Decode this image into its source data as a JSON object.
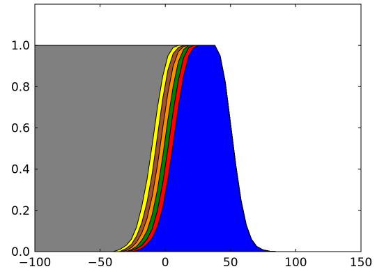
{
  "chart_data": {
    "type": "area",
    "title": "",
    "xlabel": "",
    "ylabel": "",
    "xlim": [
      -100,
      150
    ],
    "ylim": [
      0,
      1.2
    ],
    "grid": false,
    "legend": "none",
    "x_ticks": [
      -100,
      -50,
      0,
      50,
      100,
      150
    ],
    "x_tick_labels": [
      "−100",
      "−50",
      "0",
      "50",
      "100",
      "150"
    ],
    "y_ticks": [
      0.0,
      0.2,
      0.4,
      0.6,
      0.8,
      1.0
    ],
    "y_tick_labels": [
      "0.0",
      "0.2",
      "0.4",
      "0.6",
      "0.8",
      "1.0"
    ],
    "series": [
      {
        "color": "#808080",
        "x": [
          -100,
          -40,
          -35,
          -30,
          -26,
          -22,
          -18,
          -14,
          -10,
          -6,
          -2,
          2,
          6,
          10,
          14,
          18,
          22,
          26,
          30,
          34,
          38,
          42,
          46,
          50,
          54,
          58,
          62,
          66,
          70,
          75,
          80,
          85,
          90,
          100,
          150
        ],
        "values": [
          1.0,
          1.0,
          1.0,
          1.0,
          1.0,
          1.0,
          1.0,
          1.0,
          1.0,
          1.0,
          1.0,
          1.0,
          1.0,
          1.0,
          1.0,
          1.0,
          1.0,
          1.0,
          1.0,
          1.0,
          1.0,
          0.95,
          0.82,
          0.62,
          0.42,
          0.25,
          0.13,
          0.06,
          0.025,
          0.008,
          0.002,
          0.0,
          0.0,
          0.0,
          0.0
        ]
      },
      {
        "color": "#ffff00",
        "x": [
          -100,
          -40,
          -35,
          -30,
          -26,
          -22,
          -18,
          -14,
          -10,
          -6,
          -2,
          2,
          6,
          10,
          14,
          18,
          22,
          26,
          30,
          34,
          38,
          42,
          46,
          50,
          54,
          58,
          62,
          66,
          70,
          75,
          80,
          85,
          90,
          100,
          150
        ],
        "values": [
          0.0,
          0.0,
          0.01,
          0.03,
          0.06,
          0.12,
          0.22,
          0.35,
          0.52,
          0.7,
          0.85,
          0.95,
          0.99,
          1.0,
          1.0,
          1.0,
          1.0,
          1.0,
          1.0,
          1.0,
          1.0,
          0.95,
          0.82,
          0.62,
          0.42,
          0.25,
          0.13,
          0.06,
          0.025,
          0.008,
          0.002,
          0.0,
          0.0,
          0.0,
          0.0
        ]
      },
      {
        "color": "#a0522d",
        "x": [
          -100,
          -40,
          -35,
          -30,
          -26,
          -22,
          -18,
          -14,
          -10,
          -6,
          -2,
          2,
          6,
          10,
          14,
          18,
          22,
          26,
          30,
          34,
          38,
          42,
          46,
          50,
          54,
          58,
          62,
          66,
          70,
          75,
          80,
          85,
          90,
          100,
          150
        ],
        "values": [
          0.0,
          0.0,
          0.0,
          0.015,
          0.035,
          0.075,
          0.14,
          0.24,
          0.38,
          0.56,
          0.74,
          0.88,
          0.96,
          0.99,
          1.0,
          1.0,
          1.0,
          1.0,
          1.0,
          1.0,
          1.0,
          0.95,
          0.82,
          0.62,
          0.42,
          0.25,
          0.13,
          0.06,
          0.025,
          0.008,
          0.002,
          0.0,
          0.0,
          0.0,
          0.0
        ]
      },
      {
        "color": "#ff8c00",
        "x": [
          -100,
          -40,
          -35,
          -30,
          -26,
          -22,
          -18,
          -14,
          -10,
          -6,
          -2,
          2,
          6,
          10,
          14,
          18,
          22,
          26,
          30,
          34,
          38,
          42,
          46,
          50,
          54,
          58,
          62,
          66,
          70,
          75,
          80,
          85,
          90,
          100,
          150
        ],
        "values": [
          0.0,
          0.0,
          0.0,
          0.005,
          0.02,
          0.045,
          0.09,
          0.16,
          0.27,
          0.42,
          0.6,
          0.77,
          0.9,
          0.97,
          0.995,
          1.0,
          1.0,
          1.0,
          1.0,
          1.0,
          1.0,
          0.95,
          0.82,
          0.62,
          0.42,
          0.25,
          0.13,
          0.06,
          0.025,
          0.008,
          0.002,
          0.0,
          0.0,
          0.0,
          0.0
        ]
      },
      {
        "color": "#008000",
        "x": [
          -100,
          -40,
          -35,
          -30,
          -26,
          -22,
          -18,
          -14,
          -10,
          -6,
          -2,
          2,
          6,
          10,
          14,
          18,
          22,
          26,
          30,
          34,
          38,
          42,
          46,
          50,
          54,
          58,
          62,
          66,
          70,
          75,
          80,
          85,
          90,
          100,
          150
        ],
        "values": [
          0.0,
          0.0,
          0.0,
          0.0,
          0.01,
          0.025,
          0.055,
          0.1,
          0.18,
          0.3,
          0.46,
          0.64,
          0.8,
          0.92,
          0.98,
          1.0,
          1.0,
          1.0,
          1.0,
          1.0,
          1.0,
          0.95,
          0.82,
          0.62,
          0.42,
          0.25,
          0.13,
          0.06,
          0.025,
          0.008,
          0.002,
          0.0,
          0.0,
          0.0,
          0.0
        ]
      },
      {
        "color": "#ff0000",
        "x": [
          -100,
          -40,
          -35,
          -30,
          -26,
          -22,
          -18,
          -14,
          -10,
          -6,
          -2,
          2,
          6,
          10,
          14,
          18,
          22,
          26,
          30,
          34,
          38,
          42,
          46,
          50,
          54,
          58,
          62,
          66,
          70,
          75,
          80,
          85,
          90,
          100,
          150
        ],
        "values": [
          0.0,
          0.0,
          0.0,
          0.0,
          0.005,
          0.015,
          0.03,
          0.06,
          0.11,
          0.2,
          0.33,
          0.5,
          0.68,
          0.83,
          0.94,
          0.99,
          1.0,
          1.0,
          1.0,
          1.0,
          1.0,
          0.95,
          0.82,
          0.62,
          0.42,
          0.25,
          0.13,
          0.06,
          0.025,
          0.008,
          0.002,
          0.0,
          0.0,
          0.0,
          0.0
        ]
      },
      {
        "color": "#0000ff",
        "x": [
          -100,
          -40,
          -35,
          -30,
          -26,
          -22,
          -18,
          -14,
          -10,
          -6,
          -2,
          2,
          6,
          10,
          14,
          18,
          22,
          26,
          30,
          34,
          38,
          42,
          46,
          50,
          54,
          58,
          62,
          66,
          70,
          75,
          80,
          85,
          90,
          100,
          150
        ],
        "values": [
          0.0,
          0.0,
          0.0,
          0.0,
          0.0,
          0.005,
          0.015,
          0.035,
          0.065,
          0.12,
          0.21,
          0.35,
          0.52,
          0.7,
          0.85,
          0.95,
          0.99,
          1.0,
          1.0,
          1.0,
          1.0,
          0.95,
          0.82,
          0.62,
          0.42,
          0.25,
          0.13,
          0.06,
          0.025,
          0.008,
          0.002,
          0.0,
          0.0,
          0.0,
          0.0
        ]
      }
    ]
  }
}
